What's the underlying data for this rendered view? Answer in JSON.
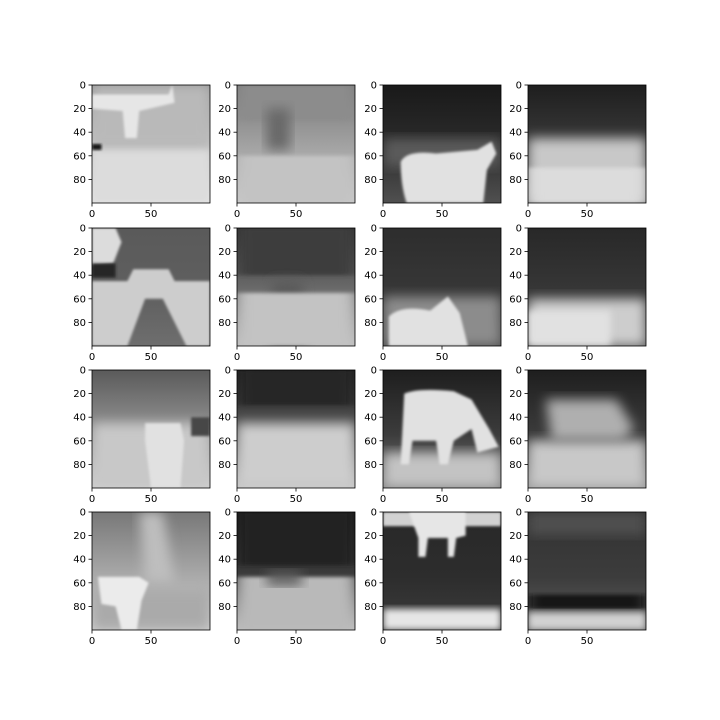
{
  "figure": {
    "background": "#ffffff",
    "axis_color": "#000000"
  },
  "chart_data": {
    "type": "image_grid",
    "rows": 4,
    "cols": 4,
    "colormap": "gray",
    "image_extent": {
      "x": [
        0,
        100
      ],
      "y": [
        0,
        100
      ]
    },
    "x_ticks": [
      0,
      50
    ],
    "y_ticks": [
      0,
      20,
      40,
      60,
      80
    ],
    "x_tick_labels": [
      "0",
      "50"
    ],
    "y_tick_labels": [
      "0",
      "20",
      "40",
      "60",
      "80"
    ],
    "panels": [
      {
        "content": "cow depth map",
        "row": 0,
        "col": 0
      },
      {
        "content": "cow depth map (noisy)",
        "row": 0,
        "col": 1
      },
      {
        "content": "cow depth map",
        "row": 0,
        "col": 2
      },
      {
        "content": "cow depth map (noisy)",
        "row": 0,
        "col": 3
      },
      {
        "content": "cow depth map",
        "row": 1,
        "col": 0
      },
      {
        "content": "cow depth map (noisy)",
        "row": 1,
        "col": 1
      },
      {
        "content": "cow depth map",
        "row": 1,
        "col": 2
      },
      {
        "content": "cow depth map (noisy)",
        "row": 1,
        "col": 3
      },
      {
        "content": "cow depth map",
        "row": 2,
        "col": 0
      },
      {
        "content": "cow depth map (noisy)",
        "row": 2,
        "col": 1
      },
      {
        "content": "cow depth map",
        "row": 2,
        "col": 2
      },
      {
        "content": "cow depth map (noisy)",
        "row": 2,
        "col": 3
      },
      {
        "content": "cow depth map",
        "row": 3,
        "col": 0
      },
      {
        "content": "cow depth map (noisy)",
        "row": 3,
        "col": 1
      },
      {
        "content": "cow depth map",
        "row": 3,
        "col": 2
      },
      {
        "content": "cow depth map (noisy)",
        "row": 3,
        "col": 3
      }
    ]
  }
}
